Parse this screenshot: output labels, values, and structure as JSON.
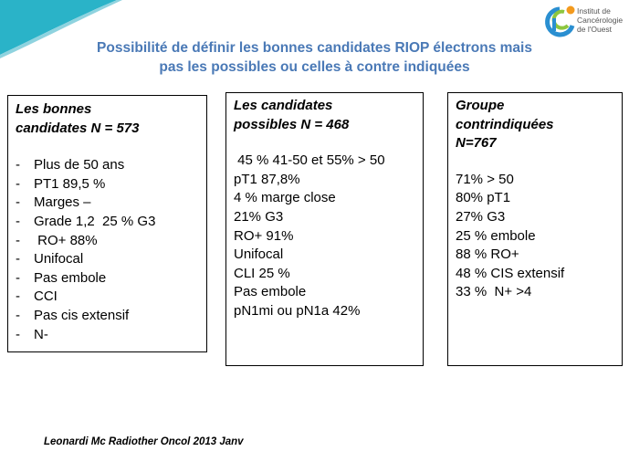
{
  "logo": {
    "icon": "institut-logo-icon",
    "lines": [
      "Institut de",
      "Cancérologie",
      "de l'Ouest"
    ],
    "colors": {
      "blue": "#2a8fd1",
      "green": "#8dc63f",
      "orange": "#f39a1e"
    }
  },
  "title": {
    "line1": "Possibilité de définir les bonnes candidates RIOP électrons mais",
    "line2": "pas les possibles ou celles à contre indiquées",
    "color": "#4a79b6"
  },
  "boxes": [
    {
      "title_lines": [
        "Les bonnes",
        "candidates N = 573"
      ],
      "items": [
        "Plus de 50 ans",
        "PT1 89,5 %",
        "Marges –",
        "Grade 1,2  25 % G3",
        " RO+ 88%",
        "Unifocal",
        "Pas embole",
        "CCI",
        "Pas cis extensif",
        "N-"
      ]
    },
    {
      "title_lines": [
        "Les candidates",
        "possibles N = 468"
      ],
      "items": [
        " 45 % 41-50 et 55% > 50",
        "pT1 87,8%",
        "4 % marge close",
        "21% G3",
        "RO+ 91%",
        "Unifocal",
        "CLI 25 %",
        "Pas embole",
        "pN1mi ou pN1a 42%"
      ]
    },
    {
      "title_lines": [
        "Groupe",
        "contrindiquées",
        "N=767"
      ],
      "items": [
        "71% > 50",
        "80% pT1",
        "27% G3",
        "25 % embole",
        "88 % RO+",
        "48 % CIS extensif",
        "33 %  N+ >4"
      ]
    }
  ],
  "footer": {
    "citation": "Leonardi Mc Radiother Oncol 2013 Janv"
  }
}
